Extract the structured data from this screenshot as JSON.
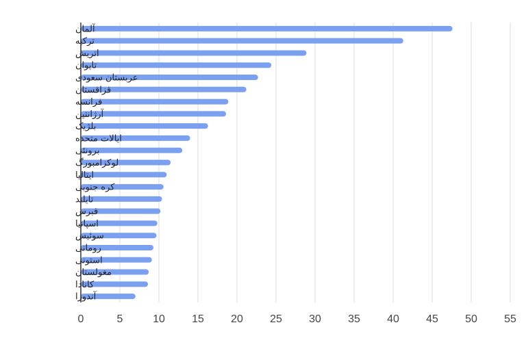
{
  "chart_data": {
    "type": "bar",
    "orientation": "horizontal",
    "title": "",
    "xlabel": "",
    "ylabel": "",
    "xlim": [
      0,
      55
    ],
    "x_ticks": [
      "0",
      "5",
      "10",
      "15",
      "20",
      "25",
      "30",
      "35",
      "40",
      "45",
      "50",
      "55"
    ],
    "grid": true,
    "legend": "none",
    "bar_color": "#7ba0f0",
    "categories": [
      "آلمان",
      "ترکیه",
      "اتریش",
      "تایوان",
      "عربستان سعودی",
      "قزاقستان",
      "فرانسه",
      "آرژانتین",
      "بلژیک",
      "ایالات متحده",
      "برونئی",
      "لوکزامبورگ",
      "ایتالیا",
      "کره جنوبی",
      "تایلند",
      "قبرس",
      "اسپانیا",
      "سوئیس",
      "رومانی",
      "استونی",
      "مغولستان",
      "کانادا",
      "آندورا"
    ],
    "values": [
      47.6,
      41.3,
      28.9,
      24.4,
      22.7,
      21.2,
      18.9,
      18.6,
      16.3,
      14.0,
      13.0,
      11.5,
      11.0,
      10.6,
      10.4,
      10.2,
      9.8,
      9.7,
      9.3,
      9.1,
      8.7,
      8.6,
      7.0
    ]
  }
}
